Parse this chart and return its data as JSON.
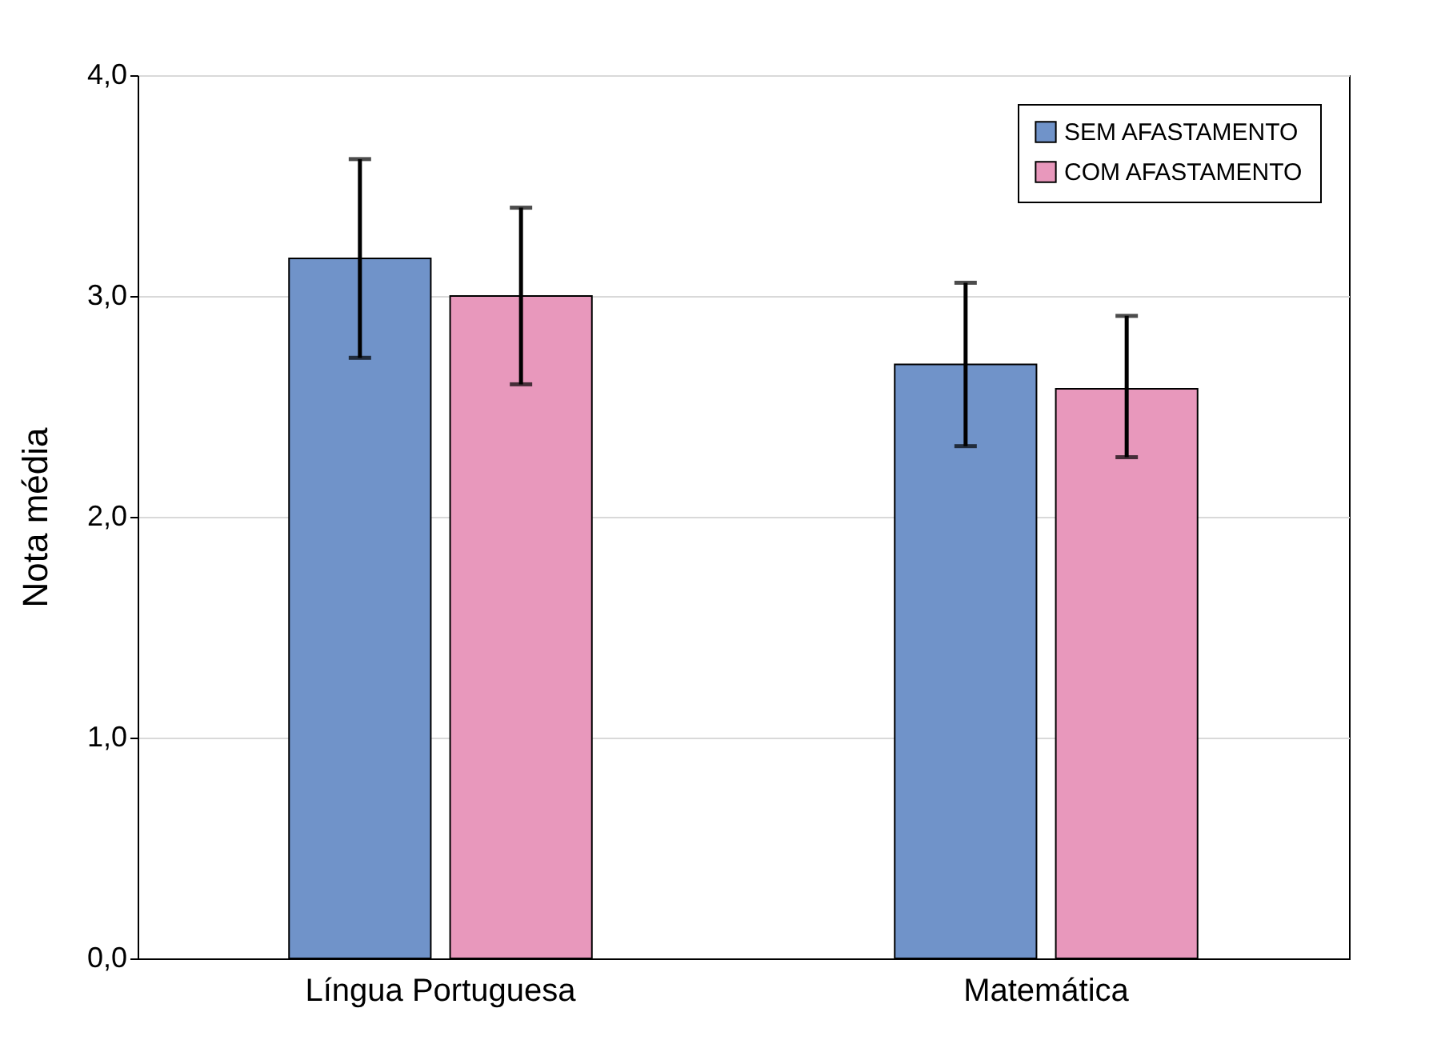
{
  "chart_data": {
    "type": "bar",
    "ylabel": "Nota média",
    "categories": [
      "Língua Portuguesa",
      "Matemática"
    ],
    "series": [
      {
        "name": "SEM AFASTAMENTO",
        "color": "#7093c9",
        "values": [
          3.17,
          2.69
        ],
        "errors": [
          [
            2.72,
            3.62
          ],
          [
            2.32,
            3.06
          ]
        ]
      },
      {
        "name": "COM AFASTAMENTO",
        "color": "#e898bc",
        "values": [
          3.0,
          2.58
        ],
        "errors": [
          [
            2.6,
            3.4
          ],
          [
            2.27,
            2.91
          ]
        ]
      }
    ],
    "ylim": [
      0,
      4
    ],
    "yticks": [
      {
        "value": 0,
        "label": "0,0"
      },
      {
        "value": 1,
        "label": "1,0"
      },
      {
        "value": 2,
        "label": "2,0"
      },
      {
        "value": 3,
        "label": "3,0"
      },
      {
        "value": 4,
        "label": "4,0"
      }
    ],
    "grid": "y",
    "legend": "top right"
  }
}
